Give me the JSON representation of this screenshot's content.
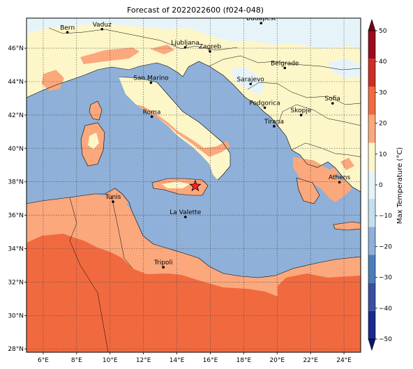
{
  "title": "Forecast of 2022022600 (f024-048)",
  "map": {
    "lon_range": [
      5,
      25
    ],
    "lat_range": [
      27.8,
      47.8
    ],
    "lon_ticks": [
      {
        "value": 6,
        "label": "6°E"
      },
      {
        "value": 8,
        "label": "8°E"
      },
      {
        "value": 10,
        "label": "10°E"
      },
      {
        "value": 12,
        "label": "12°E"
      },
      {
        "value": 14,
        "label": "14°E"
      },
      {
        "value": 16,
        "label": "16°E"
      },
      {
        "value": 18,
        "label": "18°E"
      },
      {
        "value": 20,
        "label": "20°E"
      },
      {
        "value": 22,
        "label": "22°E"
      },
      {
        "value": 24,
        "label": "24°E"
      }
    ],
    "lat_ticks": [
      {
        "value": 28,
        "label": "28°N"
      },
      {
        "value": 30,
        "label": "30°N"
      },
      {
        "value": 32,
        "label": "32°N"
      },
      {
        "value": 34,
        "label": "34°N"
      },
      {
        "value": 36,
        "label": "36°N"
      },
      {
        "value": 38,
        "label": "38°N"
      },
      {
        "value": 40,
        "label": "40°N"
      },
      {
        "value": 42,
        "label": "42°N"
      },
      {
        "value": 44,
        "label": "44°N"
      },
      {
        "value": 46,
        "label": "46°N"
      }
    ],
    "grid": true,
    "cities": [
      {
        "name": "Bern",
        "lon": 7.45,
        "lat": 46.95
      },
      {
        "name": "Vaduz",
        "lon": 9.52,
        "lat": 47.14
      },
      {
        "name": "Budapest",
        "lon": 19.04,
        "lat": 47.5
      },
      {
        "name": "Ljubljana",
        "lon": 14.5,
        "lat": 46.05
      },
      {
        "name": "Zagreb",
        "lon": 15.98,
        "lat": 45.81
      },
      {
        "name": "Belgrade",
        "lon": 20.46,
        "lat": 44.82
      },
      {
        "name": "San Marino",
        "lon": 12.45,
        "lat": 43.94
      },
      {
        "name": "Sarajevo",
        "lon": 18.41,
        "lat": 43.86
      },
      {
        "name": "Sofia",
        "lon": 23.32,
        "lat": 42.7
      },
      {
        "name": "Podgorica",
        "lon": 19.26,
        "lat": 42.44
      },
      {
        "name": "Skopje",
        "lon": 21.43,
        "lat": 42.0
      },
      {
        "name": "Roma",
        "lon": 12.5,
        "lat": 41.9
      },
      {
        "name": "Tirana",
        "lon": 19.82,
        "lat": 41.33
      },
      {
        "name": "Athens",
        "lon": 23.73,
        "lat": 37.98
      },
      {
        "name": "Tunis",
        "lon": 10.18,
        "lat": 36.81
      },
      {
        "name": "La Valette",
        "lon": 14.51,
        "lat": 35.9
      },
      {
        "name": "Tripoli",
        "lon": 13.19,
        "lat": 32.89
      }
    ],
    "marker": {
      "shape": "star",
      "lon": 15.1,
      "lat": 37.75,
      "color": "#ff2020"
    }
  },
  "colorbar": {
    "label": "Max Temperature (°C)",
    "min": -50,
    "max": 50,
    "ticks": [
      {
        "value": 50,
        "label": "50"
      },
      {
        "value": 40,
        "label": "40"
      },
      {
        "value": 30,
        "label": "30"
      },
      {
        "value": 20,
        "label": "20"
      },
      {
        "value": 10,
        "label": "10"
      },
      {
        "value": 0,
        "label": "0"
      },
      {
        "value": -10,
        "label": "−10"
      },
      {
        "value": -20,
        "label": "−20"
      },
      {
        "value": -30,
        "label": "−30"
      },
      {
        "value": -40,
        "label": "−40"
      },
      {
        "value": -50,
        "label": "−50"
      }
    ],
    "colors": [
      "#1b2a8f",
      "#3b4fa0",
      "#4d7db8",
      "#8fb0d8",
      "#c6dff0",
      "#e6f4fa",
      "#fdf6c8",
      "#fba87c",
      "#f16a3f",
      "#cf2e24",
      "#9b0b1e"
    ],
    "extend_min_color": "#0d1670",
    "extend_max_color": "#7a0015"
  }
}
